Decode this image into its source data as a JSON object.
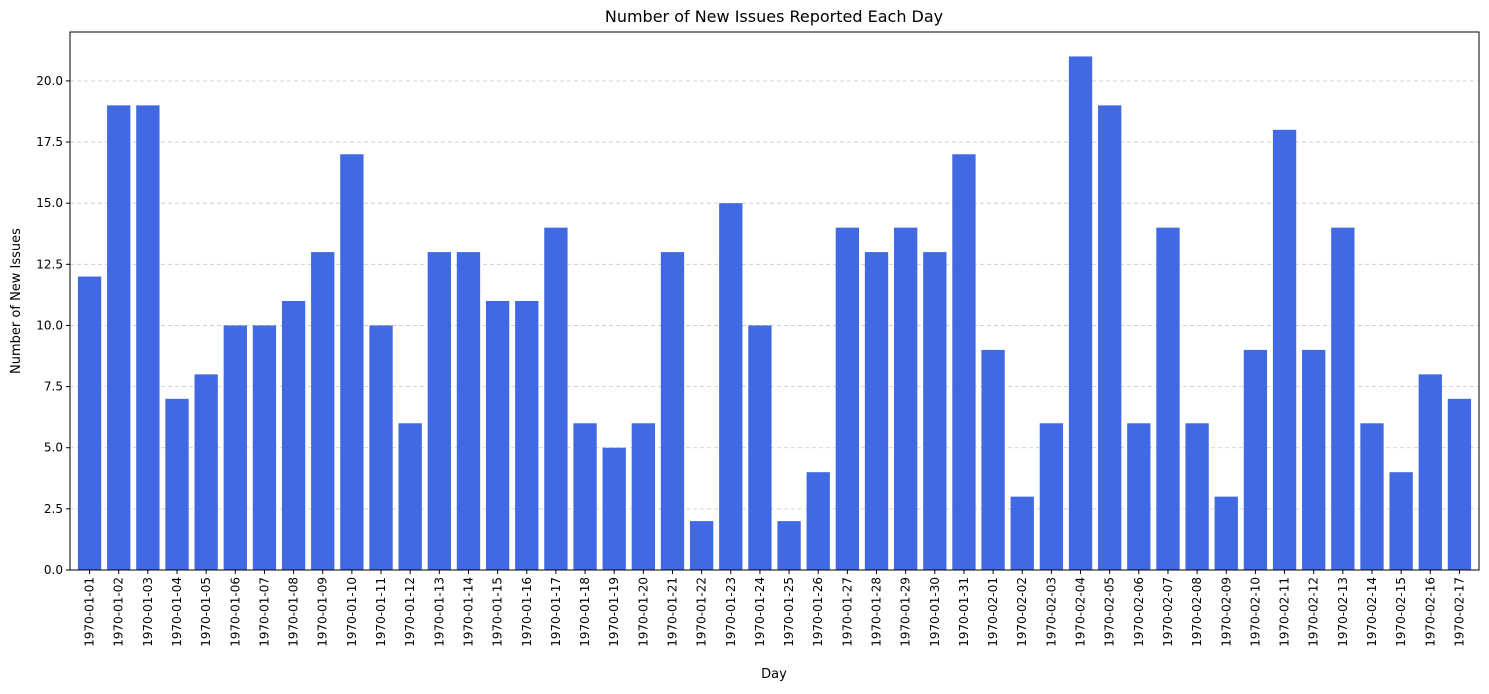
{
  "chart_data": {
    "type": "bar",
    "title": "Number of New Issues Reported Each Day",
    "xlabel": "Day",
    "ylabel": "Number of New Issues",
    "ylim": [
      0,
      22
    ],
    "yticks": [
      0,
      2.5,
      5,
      7.5,
      10,
      12.5,
      15,
      17.5,
      20
    ],
    "ytick_labels": [
      "0.0",
      "2.5",
      "5.0",
      "7.5",
      "10.0",
      "12.5",
      "15.0",
      "17.5",
      "20.0"
    ],
    "grid": "y-dashed",
    "bar_color": "#4169E1",
    "grid_color": "#c8c8c8",
    "categories": [
      "1970-01-01",
      "1970-01-02",
      "1970-01-03",
      "1970-01-04",
      "1970-01-05",
      "1970-01-06",
      "1970-01-07",
      "1970-01-08",
      "1970-01-09",
      "1970-01-10",
      "1970-01-11",
      "1970-01-12",
      "1970-01-13",
      "1970-01-14",
      "1970-01-15",
      "1970-01-16",
      "1970-01-17",
      "1970-01-18",
      "1970-01-19",
      "1970-01-20",
      "1970-01-21",
      "1970-01-22",
      "1970-01-23",
      "1970-01-24",
      "1970-01-25",
      "1970-01-26",
      "1970-01-27",
      "1970-01-28",
      "1970-01-29",
      "1970-01-30",
      "1970-01-31",
      "1970-02-01",
      "1970-02-02",
      "1970-02-03",
      "1970-02-04",
      "1970-02-05",
      "1970-02-06",
      "1970-02-07",
      "1970-02-08",
      "1970-02-09",
      "1970-02-10",
      "1970-02-11",
      "1970-02-12",
      "1970-02-13",
      "1970-02-14",
      "1970-02-15",
      "1970-02-16",
      "1970-02-17"
    ],
    "values": [
      12,
      19,
      19,
      7,
      8,
      10,
      10,
      11,
      13,
      17,
      10,
      6,
      13,
      13,
      11,
      11,
      14,
      6,
      5,
      6,
      13,
      2,
      15,
      10,
      2,
      4,
      14,
      13,
      14,
      13,
      17,
      9,
      3,
      6,
      21,
      19,
      6,
      14,
      6,
      3,
      9,
      18,
      9,
      14,
      6,
      4,
      8,
      7
    ]
  }
}
